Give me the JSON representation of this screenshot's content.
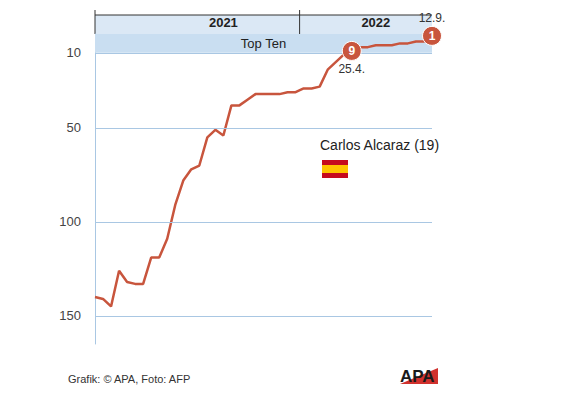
{
  "chart_data": {
    "type": "line",
    "categories": [
      null,
      null,
      null,
      null,
      null,
      null,
      null,
      null,
      null,
      null,
      null,
      null,
      null,
      null,
      null,
      null,
      "2021",
      null,
      null,
      null,
      null,
      null,
      null,
      null,
      null,
      null,
      null,
      null,
      null,
      null,
      null,
      null,
      null,
      null,
      null,
      "2022",
      null,
      null,
      null,
      null,
      null,
      null,
      null
    ],
    "values": [
      140,
      141,
      145,
      126,
      132,
      133,
      133,
      119,
      119,
      109,
      91,
      78,
      72,
      70,
      55,
      51,
      54,
      38,
      38,
      35,
      32,
      32,
      32,
      32,
      31,
      31,
      29,
      29,
      28,
      19,
      15,
      11,
      9,
      7,
      7,
      6,
      6,
      6,
      5,
      5,
      4,
      4,
      1
    ],
    "color": "#c8553d",
    "ylim": [
      165,
      0
    ],
    "yticks": [
      10,
      50,
      100,
      150
    ],
    "grid": true,
    "top_band": {
      "label": "Top Ten",
      "from": 0,
      "to": 10
    },
    "annotations": [
      {
        "at": 32,
        "text": "9",
        "label": "25.4."
      },
      {
        "at": 42,
        "text": "1",
        "label": "12.9."
      }
    ],
    "subject": "Carlos Alcaraz (19)",
    "credit": "Grafik: © APA, Foto: AFP",
    "logo": "APA"
  }
}
